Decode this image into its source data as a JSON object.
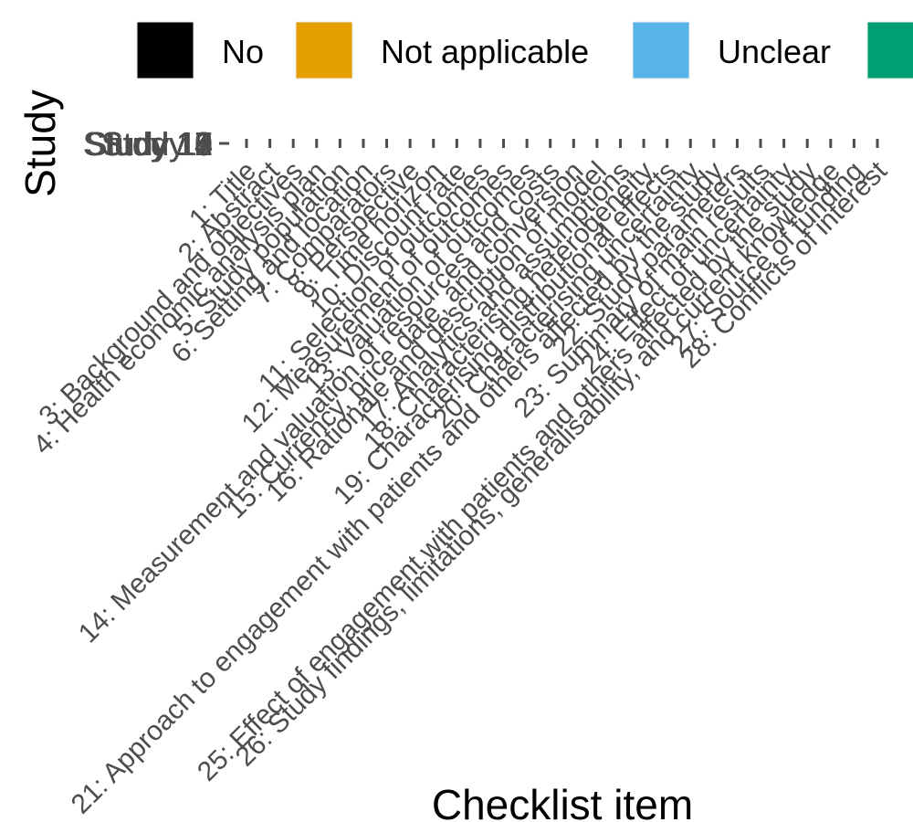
{
  "chart_data": {
    "type": "heatmap",
    "xlabel": "Checklist item",
    "ylabel": "Study",
    "legend": {
      "position": "top",
      "entries": [
        {
          "label": "No",
          "color": "#000000"
        },
        {
          "label": "Not applicable",
          "color": "#E69F00"
        },
        {
          "label": "Unclear",
          "color": "#56B4E9"
        },
        {
          "label": "",
          "color": "#009E73"
        }
      ]
    },
    "x_categories": [
      "1: Title",
      "2: Abstract",
      "3: Background and objectives",
      "4: Health economic analysis plan",
      "5: Study population",
      "6: Setting and location",
      "7: Comparators",
      "8: Perspective",
      "9: Time horizon",
      "10: Discount rate",
      "11: Selection of outcomes",
      "12: Measurement of outcomes",
      "13: Valuation of outcomes",
      "14: Measurement and valuation of resources and costs",
      "15: Currency, price date, and conversion",
      "16: Rationale and description of model",
      "17: Analytics and assumptions",
      "18: Characterising heterogeneity",
      "19: Characterising distributional effects",
      "20: Characterising uncertainty",
      "21: Approach to engagement with patients and others affected by the study",
      "22: Study parameters",
      "23: Summary of main results",
      "24: Effect of uncertainty",
      "25: Effect of engagement with patients and others affected by the study",
      "26: Study findings, limitations, generalisability, and current knowledge",
      "27: Source of funding",
      "28: Conflicts of interest"
    ],
    "y_categories": [
      "Study 1",
      "Study 2",
      "Study 3",
      "Study 4",
      "Study 5",
      "Study 6",
      "Study 7",
      "Study 8",
      "Study 9",
      "Study 10",
      "Study 11",
      "Study 12",
      "Study 13",
      "Study 14",
      "Study 15"
    ],
    "values": [],
    "grid": false
  }
}
